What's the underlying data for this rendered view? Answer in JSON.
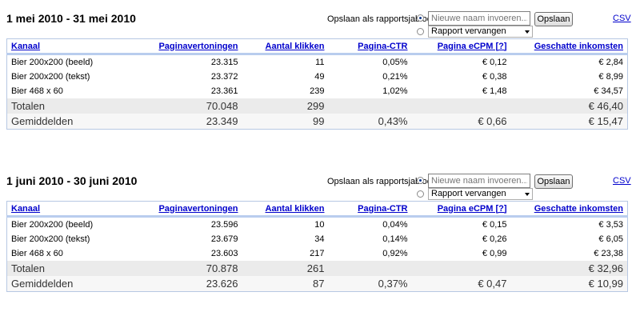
{
  "template_label": "Opslaan als rapportsjabloon:",
  "new_name_placeholder": "Nieuwe naam invoeren...",
  "save_label": "Opslaan",
  "replace_option": "Rapport vervangen",
  "csv_label": "CSV",
  "columns": [
    "Kanaal",
    "Paginavertoningen",
    "Aantal klikken",
    "Pagina-CTR",
    "Pagina eCPM [?]",
    "Geschatte inkomsten"
  ],
  "reports": [
    {
      "title": "1 mei 2010 - 31 mei 2010",
      "rows": [
        {
          "channel": "Bier 200x200 (beeld)",
          "views": "23.315",
          "clicks": "11",
          "ctr": "0,05%",
          "ecpm": "€ 0,12",
          "revenue": "€ 2,84"
        },
        {
          "channel": "Bier 200x200 (tekst)",
          "views": "23.372",
          "clicks": "49",
          "ctr": "0,21%",
          "ecpm": "€ 0,38",
          "revenue": "€ 8,99"
        },
        {
          "channel": "Bier 468 x 60",
          "views": "23.361",
          "clicks": "239",
          "ctr": "1,02%",
          "ecpm": "€ 1,48",
          "revenue": "€ 34,57"
        }
      ],
      "totals": {
        "label": "Totalen",
        "views": "70.048",
        "clicks": "299",
        "ctr": "",
        "ecpm": "",
        "revenue": "€ 46,40"
      },
      "averages": {
        "label": "Gemiddelden",
        "views": "23.349",
        "clicks": "99",
        "ctr": "0,43%",
        "ecpm": "€ 0,66",
        "revenue": "€ 15,47"
      }
    },
    {
      "title": "1 juni 2010 - 30 juni 2010",
      "rows": [
        {
          "channel": "Bier 200x200 (beeld)",
          "views": "23.596",
          "clicks": "10",
          "ctr": "0,04%",
          "ecpm": "€ 0,15",
          "revenue": "€ 3,53"
        },
        {
          "channel": "Bier 200x200 (tekst)",
          "views": "23.679",
          "clicks": "34",
          "ctr": "0,14%",
          "ecpm": "€ 0,26",
          "revenue": "€ 6,05"
        },
        {
          "channel": "Bier 468 x 60",
          "views": "23.603",
          "clicks": "217",
          "ctr": "0,92%",
          "ecpm": "€ 0,99",
          "revenue": "€ 23,38"
        }
      ],
      "totals": {
        "label": "Totalen",
        "views": "70.878",
        "clicks": "261",
        "ctr": "",
        "ecpm": "",
        "revenue": "€ 32,96"
      },
      "averages": {
        "label": "Gemiddelden",
        "views": "23.626",
        "clicks": "87",
        "ctr": "0,37%",
        "ecpm": "€ 0,47",
        "revenue": "€ 10,99"
      }
    }
  ]
}
